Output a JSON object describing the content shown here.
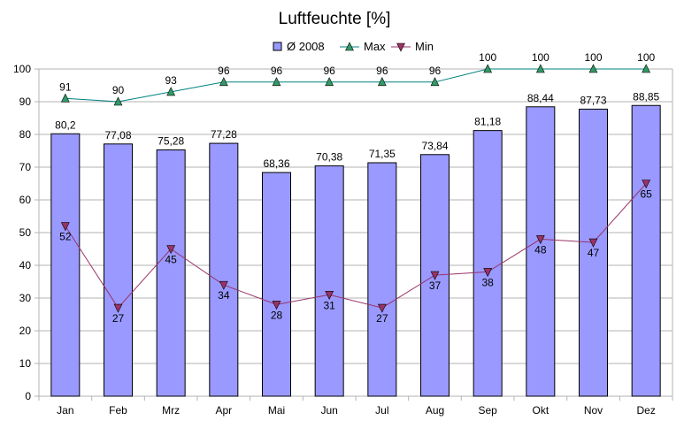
{
  "chart_data": {
    "type": "bar",
    "title": "Luftfeuchte [%]",
    "xlabel": "",
    "ylabel": "",
    "ylim": [
      0,
      100
    ],
    "yticks": [
      0,
      10,
      20,
      30,
      40,
      50,
      60,
      70,
      80,
      90,
      100
    ],
    "grid": true,
    "legend_position": "top",
    "categories": [
      "Jan",
      "Feb",
      "Mrz",
      "Apr",
      "Mai",
      "Jun",
      "Jul",
      "Aug",
      "Sep",
      "Okt",
      "Nov",
      "Dez"
    ],
    "series": [
      {
        "name": "Ø 2008",
        "kind": "bar",
        "color": "#9999ff",
        "values": [
          80.2,
          77.08,
          75.28,
          77.28,
          68.36,
          70.38,
          71.35,
          73.84,
          81.18,
          88.44,
          87.73,
          88.85
        ],
        "labels": [
          "80,2",
          "77,08",
          "75,28",
          "77,28",
          "68,36",
          "70,38",
          "71,35",
          "73,84",
          "81,18",
          "88,44",
          "87,73",
          "88,85"
        ]
      },
      {
        "name": "Max",
        "kind": "line",
        "marker": "triangle-up",
        "color": "#008080",
        "marker_color": "#339966",
        "values": [
          91,
          90,
          93,
          96,
          96,
          96,
          96,
          96,
          100,
          100,
          100,
          100
        ],
        "labels": [
          "91",
          "90",
          "93",
          "96",
          "96",
          "96",
          "96",
          "96",
          "100",
          "100",
          "100",
          "100"
        ]
      },
      {
        "name": "Min",
        "kind": "line",
        "marker": "triangle-down",
        "color": "#993366",
        "marker_color": "#993366",
        "values": [
          52,
          27,
          45,
          34,
          28,
          31,
          27,
          37,
          38,
          48,
          47,
          65
        ],
        "labels": [
          "52",
          "27",
          "45",
          "34",
          "28",
          "31",
          "27",
          "37",
          "38",
          "48",
          "47",
          "65"
        ]
      }
    ]
  }
}
